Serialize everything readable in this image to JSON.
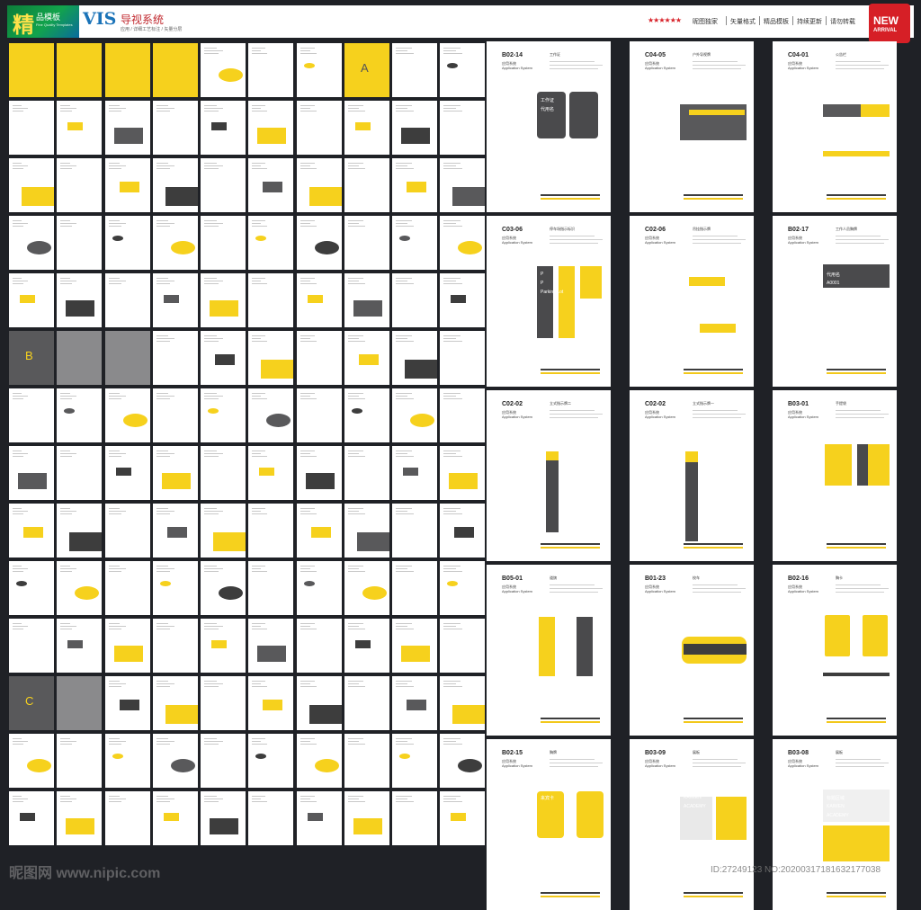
{
  "header": {
    "logo_char": "精",
    "logo_sub": "品模板",
    "logo_tiny": "Fine Quality Templates",
    "title": "VIS",
    "subtitle": "导视系统",
    "subtitle_tiny": "应用 / 详细工艺标注 / 矢量分层",
    "stars": "★★★★★★",
    "features": [
      "昵图独家",
      "矢量格式",
      "精品模板",
      "持续更新",
      "请勿转载"
    ],
    "badge_main": "NEW",
    "badge_sub": "ARRIVAL",
    "colors": {
      "brand_yellow": "#f6d11d",
      "brand_gray": "#59595b",
      "badge_red": "#d61f26"
    }
  },
  "thumbnails": {
    "section_letters": [
      "A",
      "B",
      "C"
    ]
  },
  "pages": [
    {
      "code": "B02-14",
      "cn": "应用系统",
      "en": "Application System",
      "desc": "工作证",
      "texts": [
        "工作证",
        "代用名"
      ]
    },
    {
      "code": "C04-05",
      "cn": "应用系统",
      "en": "Application System",
      "desc": "户外导视牌",
      "texts": []
    },
    {
      "code": "C04-01",
      "cn": "应用系统",
      "en": "Application System",
      "desc": "公告栏",
      "texts": []
    },
    {
      "code": "C03-06",
      "cn": "应用系统",
      "en": "Application System",
      "desc": "停车场指示标识",
      "texts": [
        "P",
        "P",
        "Parking Lot"
      ]
    },
    {
      "code": "C02-06",
      "cn": "应用系统",
      "en": "Application System",
      "desc": "吊挂指示牌",
      "texts": [
        "P"
      ]
    },
    {
      "code": "B02-17",
      "cn": "应用系统",
      "en": "Application System",
      "desc": "工作人员胸牌",
      "texts": [
        "代用名",
        "A0001"
      ]
    },
    {
      "code": "C02-02",
      "cn": "应用系统",
      "en": "Application System",
      "desc": "立式指示牌二",
      "texts": []
    },
    {
      "code": "C02-02",
      "cn": "应用系统",
      "en": "Application System",
      "desc": "立式指示牌一",
      "texts": []
    },
    {
      "code": "B03-01",
      "cn": "应用系统",
      "en": "Application System",
      "desc": "手提袋",
      "texts": []
    },
    {
      "code": "B05-01",
      "cn": "应用系统",
      "en": "Application System",
      "desc": "道旗",
      "texts": []
    },
    {
      "code": "B01-23",
      "cn": "应用系统",
      "en": "Application System",
      "desc": "校车",
      "texts": []
    },
    {
      "code": "B02-16",
      "cn": "应用系统",
      "en": "Application System",
      "desc": "胸卡",
      "texts": []
    },
    {
      "code": "B02-15",
      "cn": "应用系统",
      "en": "Application System",
      "desc": "胸牌",
      "texts": [
        "来宾卡"
      ]
    },
    {
      "code": "B03-09",
      "cn": "应用系统",
      "en": "Application System",
      "desc": "展板",
      "texts": [
        "KAIWEN",
        "ACADEMY"
      ]
    },
    {
      "code": "B03-08",
      "cn": "应用系统",
      "en": "Application System",
      "desc": "展板",
      "texts": [
        "标题区域",
        "KAIWEN",
        "ACADEMY"
      ]
    }
  ],
  "watermark": {
    "site": "昵图网 www.nipic.com",
    "id": "ID:27249123 NO:20200317181632177038"
  }
}
